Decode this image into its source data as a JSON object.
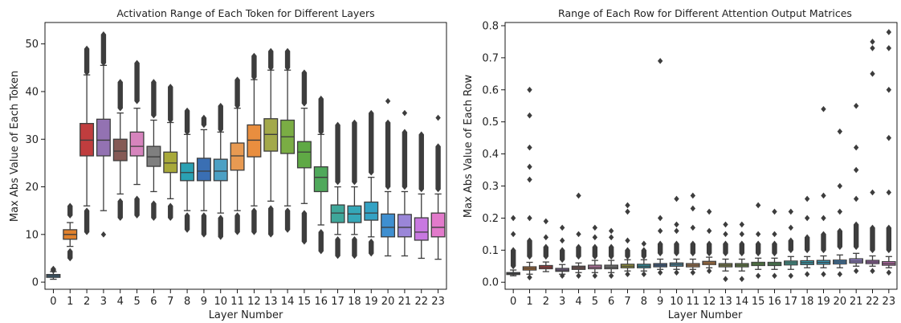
{
  "chart_data": [
    {
      "type": "box",
      "title": "Activation Range of Each Token for Different Layers",
      "xlabel": "Layer Number",
      "ylabel": "Max Abs Value of Each Token",
      "ylim": [
        -1.5,
        54.5
      ],
      "yticks": [
        0,
        10,
        20,
        30,
        40,
        50
      ],
      "categories": [
        "0",
        "1",
        "2",
        "3",
        "4",
        "5",
        "6",
        "7",
        "8",
        "9",
        "10",
        "11",
        "12",
        "13",
        "14",
        "15",
        "16",
        "17",
        "18",
        "19",
        "20",
        "21",
        "22",
        "23"
      ],
      "colors": [
        "#3274a1",
        "#e1812c",
        "#c03d3e",
        "#9372b2",
        "#855a55",
        "#d684bd",
        "#7f7f7f",
        "#a8a93a",
        "#2aa1b3",
        "#3a6fb3",
        "#4ca0c4",
        "#e89a52",
        "#e98e3f",
        "#a3a94a",
        "#7aad44",
        "#5fa945",
        "#4fa95b",
        "#3fa79a",
        "#35a7b8",
        "#34a2c4",
        "#3f8fd0",
        "#9a86d8",
        "#c878e0",
        "#e27acb"
      ],
      "boxes": [
        {
          "whislo": 0.6,
          "q1": 1.0,
          "med": 1.3,
          "q3": 1.6,
          "whishi": 2.2,
          "fliers_lo": [],
          "fliers_hi": [
            2.4,
            2.8
          ]
        },
        {
          "whislo": 7.5,
          "q1": 9.0,
          "med": 10.0,
          "q3": 11.0,
          "whishi": 12.5,
          "fliers_lo": [
            5.0,
            6.5
          ],
          "fliers_hi": [
            14.0,
            16.0
          ]
        },
        {
          "whislo": 16.0,
          "q1": 26.5,
          "med": 29.8,
          "q3": 33.3,
          "whishi": 43.5,
          "fliers_lo": [
            10.5,
            15.0
          ],
          "fliers_hi": [
            44.0,
            49.0
          ]
        },
        {
          "whislo": 15.0,
          "q1": 26.5,
          "med": 29.8,
          "q3": 34.2,
          "whishi": 45.5,
          "fliers_lo": [
            10.0
          ],
          "fliers_hi": [
            46.0,
            52.0
          ]
        },
        {
          "whislo": 18.5,
          "q1": 25.5,
          "med": 27.5,
          "q3": 30.0,
          "whishi": 35.5,
          "fliers_lo": [
            13.5,
            17.0
          ],
          "fliers_hi": [
            36.5,
            42.0
          ]
        },
        {
          "whislo": 20.5,
          "q1": 26.5,
          "med": 28.5,
          "q3": 31.5,
          "whishi": 36.5,
          "fliers_lo": [
            14.0,
            17.5
          ],
          "fliers_hi": [
            38.0,
            46.0
          ]
        },
        {
          "whislo": 19.0,
          "q1": 24.3,
          "med": 26.3,
          "q3": 28.5,
          "whishi": 34.0,
          "fliers_lo": [
            13.5,
            16.5
          ],
          "fliers_hi": [
            35.0,
            42.0
          ]
        },
        {
          "whislo": 17.5,
          "q1": 23.0,
          "med": 25.0,
          "q3": 27.3,
          "whishi": 33.5,
          "fliers_lo": [
            13.5,
            16.0
          ],
          "fliers_hi": [
            34.0,
            41.0
          ]
        },
        {
          "whislo": 15.0,
          "q1": 21.3,
          "med": 23.0,
          "q3": 25.0,
          "whishi": 31.0,
          "fliers_lo": [
            11.0,
            14.0
          ],
          "fliers_hi": [
            31.5,
            36.0
          ]
        },
        {
          "whislo": 15.0,
          "q1": 21.3,
          "med": 23.3,
          "q3": 26.0,
          "whishi": 32.0,
          "fliers_lo": [
            10.0,
            14.0
          ],
          "fliers_hi": [
            33.0,
            34.5
          ]
        },
        {
          "whislo": 14.5,
          "q1": 21.3,
          "med": 23.3,
          "q3": 25.8,
          "whishi": 31.5,
          "fliers_lo": [
            9.5,
            13.5
          ],
          "fliers_hi": [
            32.0,
            37.0
          ]
        },
        {
          "whislo": 15.0,
          "q1": 23.5,
          "med": 26.5,
          "q3": 29.2,
          "whishi": 36.5,
          "fliers_lo": [
            10.5,
            14.0
          ],
          "fliers_hi": [
            37.0,
            42.5
          ]
        },
        {
          "whislo": 16.0,
          "q1": 26.3,
          "med": 29.8,
          "q3": 33.0,
          "whishi": 42.5,
          "fliers_lo": [
            10.5,
            15.0
          ],
          "fliers_hi": [
            43.0,
            47.5
          ]
        },
        {
          "whislo": 17.0,
          "q1": 27.5,
          "med": 31.0,
          "q3": 34.3,
          "whishi": 44.5,
          "fliers_lo": [
            10.0,
            15.5
          ],
          "fliers_hi": [
            45.0,
            48.5
          ]
        },
        {
          "whislo": 16.0,
          "q1": 27.0,
          "med": 30.5,
          "q3": 34.0,
          "whishi": 44.5,
          "fliers_lo": [
            11.0,
            15.0
          ],
          "fliers_hi": [
            45.0,
            48.5
          ]
        },
        {
          "whislo": 16.5,
          "q1": 24.0,
          "med": 27.3,
          "q3": 29.5,
          "whishi": 36.5,
          "fliers_lo": [
            8.5,
            14.5
          ],
          "fliers_hi": [
            37.5,
            44.0
          ]
        },
        {
          "whislo": 12.0,
          "q1": 19.0,
          "med": 22.0,
          "q3": 24.2,
          "whishi": 31.0,
          "fliers_lo": [
            6.5,
            10.5
          ],
          "fliers_hi": [
            31.5,
            38.5
          ]
        },
        {
          "whislo": 10.0,
          "q1": 12.5,
          "med": 14.5,
          "q3": 16.2,
          "whishi": 20.0,
          "fliers_lo": [
            5.5,
            9.0
          ],
          "fliers_hi": [
            21.0,
            33.0
          ]
        },
        {
          "whislo": 10.0,
          "q1": 12.5,
          "med": 14.3,
          "q3": 16.0,
          "whishi": 20.0,
          "fliers_lo": [
            5.5,
            9.0
          ],
          "fliers_hi": [
            21.0,
            33.5
          ]
        },
        {
          "whislo": 9.5,
          "q1": 13.0,
          "med": 14.5,
          "q3": 16.8,
          "whishi": 22.0,
          "fliers_lo": [
            6.0,
            8.5
          ],
          "fliers_hi": [
            23.0,
            35.5
          ]
        },
        {
          "whislo": 5.5,
          "q1": 9.5,
          "med": 11.5,
          "q3": 14.3,
          "whishi": 19.0,
          "fliers_lo": [],
          "fliers_hi": [
            20.0,
            33.5,
            38.0
          ]
        },
        {
          "whislo": 5.5,
          "q1": 9.5,
          "med": 11.5,
          "q3": 14.2,
          "whishi": 19.0,
          "fliers_lo": [],
          "fliers_hi": [
            20.0,
            31.5,
            35.5
          ]
        },
        {
          "whislo": 5.0,
          "q1": 8.8,
          "med": 10.5,
          "q3": 13.5,
          "whishi": 18.5,
          "fliers_lo": [],
          "fliers_hi": [
            19.5,
            31.0
          ]
        },
        {
          "whislo": 4.8,
          "q1": 9.5,
          "med": 11.5,
          "q3": 14.5,
          "whishi": 18.5,
          "fliers_lo": [],
          "fliers_hi": [
            19.5,
            28.5,
            34.5
          ]
        }
      ]
    },
    {
      "type": "box",
      "title": "Range of Each Row for Different Attention Output Matrices",
      "xlabel": "Layer Number",
      "ylabel": "Max Abs Value of Each Row",
      "ylim": [
        -0.022,
        0.81
      ],
      "yticks": [
        0.0,
        0.1,
        0.2,
        0.3,
        0.4,
        0.5,
        0.6,
        0.7,
        0.8
      ],
      "categories": [
        "0",
        "1",
        "2",
        "3",
        "4",
        "5",
        "6",
        "7",
        "8",
        "9",
        "10",
        "11",
        "12",
        "13",
        "14",
        "15",
        "16",
        "17",
        "18",
        "19",
        "20",
        "21",
        "22",
        "23"
      ],
      "colors": [
        "#3274a1",
        "#e1812c",
        "#c03d3e",
        "#9372b2",
        "#855a55",
        "#d684bd",
        "#7f7f7f",
        "#a8a93a",
        "#2aa1b3",
        "#3a6fb3",
        "#4ca0c4",
        "#e89a52",
        "#e98e3f",
        "#a3a94a",
        "#7aad44",
        "#5fa945",
        "#4fa95b",
        "#3fa79a",
        "#35a7b8",
        "#34a2c4",
        "#3f8fd0",
        "#9a86d8",
        "#c878e0",
        "#e27acb"
      ],
      "boxes": [
        {
          "whislo": 0.02,
          "q1": 0.024,
          "med": 0.027,
          "q3": 0.03,
          "whishi": 0.038,
          "fliers_lo": [],
          "fliers_hi": [
            0.05,
            0.1,
            0.15,
            0.2
          ]
        },
        {
          "whislo": 0.025,
          "q1": 0.038,
          "med": 0.043,
          "q3": 0.048,
          "whishi": 0.062,
          "fliers_lo": [
            0.015
          ],
          "fliers_hi": [
            0.08,
            0.13,
            0.2,
            0.32,
            0.36,
            0.42,
            0.52,
            0.6
          ]
        },
        {
          "whislo": 0.033,
          "q1": 0.042,
          "med": 0.047,
          "q3": 0.052,
          "whishi": 0.063,
          "fliers_lo": [],
          "fliers_hi": [
            0.08,
            0.11,
            0.14,
            0.19
          ]
        },
        {
          "whislo": 0.025,
          "q1": 0.034,
          "med": 0.038,
          "q3": 0.043,
          "whishi": 0.055,
          "fliers_lo": [
            0.02
          ],
          "fliers_hi": [
            0.07,
            0.1,
            0.13,
            0.17
          ]
        },
        {
          "whislo": 0.03,
          "q1": 0.04,
          "med": 0.045,
          "q3": 0.05,
          "whishi": 0.06,
          "fliers_lo": [
            0.02
          ],
          "fliers_hi": [
            0.08,
            0.11,
            0.15,
            0.27
          ]
        },
        {
          "whislo": 0.03,
          "q1": 0.042,
          "med": 0.047,
          "q3": 0.053,
          "whishi": 0.068,
          "fliers_lo": [
            0.02
          ],
          "fliers_hi": [
            0.08,
            0.11,
            0.14,
            0.17
          ]
        },
        {
          "whislo": 0.03,
          "q1": 0.042,
          "med": 0.047,
          "q3": 0.053,
          "whishi": 0.068,
          "fliers_lo": [
            0.02
          ],
          "fliers_hi": [
            0.08,
            0.11,
            0.14,
            0.16
          ]
        },
        {
          "whislo": 0.035,
          "q1": 0.045,
          "med": 0.05,
          "q3": 0.056,
          "whishi": 0.07,
          "fliers_lo": [
            0.025
          ],
          "fliers_hi": [
            0.08,
            0.1,
            0.13,
            0.22,
            0.24
          ]
        },
        {
          "whislo": 0.035,
          "q1": 0.045,
          "med": 0.05,
          "q3": 0.056,
          "whishi": 0.07,
          "fliers_lo": [
            0.025
          ],
          "fliers_hi": [
            0.08,
            0.1,
            0.12
          ]
        },
        {
          "whislo": 0.04,
          "q1": 0.048,
          "med": 0.053,
          "q3": 0.058,
          "whishi": 0.072,
          "fliers_lo": [
            0.03
          ],
          "fliers_hi": [
            0.09,
            0.12,
            0.16,
            0.2,
            0.69
          ]
        },
        {
          "whislo": 0.04,
          "q1": 0.05,
          "med": 0.055,
          "q3": 0.06,
          "whishi": 0.072,
          "fliers_lo": [
            0.03
          ],
          "fliers_hi": [
            0.09,
            0.12,
            0.16,
            0.18,
            0.26
          ]
        },
        {
          "whislo": 0.04,
          "q1": 0.048,
          "med": 0.053,
          "q3": 0.058,
          "whishi": 0.072,
          "fliers_lo": [
            0.03
          ],
          "fliers_hi": [
            0.09,
            0.12,
            0.17,
            0.23,
            0.27
          ]
        },
        {
          "whislo": 0.045,
          "q1": 0.055,
          "med": 0.06,
          "q3": 0.065,
          "whishi": 0.078,
          "fliers_lo": [
            0.035
          ],
          "fliers_hi": [
            0.09,
            0.12,
            0.16,
            0.22
          ]
        },
        {
          "whislo": 0.035,
          "q1": 0.048,
          "med": 0.053,
          "q3": 0.058,
          "whishi": 0.072,
          "fliers_lo": [
            0.01
          ],
          "fliers_hi": [
            0.09,
            0.12,
            0.15,
            0.18
          ]
        },
        {
          "whislo": 0.035,
          "q1": 0.048,
          "med": 0.053,
          "q3": 0.058,
          "whishi": 0.072,
          "fliers_lo": [
            0.01
          ],
          "fliers_hi": [
            0.09,
            0.12,
            0.15,
            0.18
          ]
        },
        {
          "whislo": 0.04,
          "q1": 0.052,
          "med": 0.057,
          "q3": 0.062,
          "whishi": 0.075,
          "fliers_lo": [
            0.02
          ],
          "fliers_hi": [
            0.09,
            0.12,
            0.15,
            0.24
          ]
        },
        {
          "whislo": 0.04,
          "q1": 0.052,
          "med": 0.057,
          "q3": 0.062,
          "whishi": 0.075,
          "fliers_lo": [
            0.02
          ],
          "fliers_hi": [
            0.09,
            0.12,
            0.15,
            0.22
          ]
        },
        {
          "whislo": 0.04,
          "q1": 0.054,
          "med": 0.06,
          "q3": 0.066,
          "whishi": 0.08,
          "fliers_lo": [
            0.02
          ],
          "fliers_hi": [
            0.1,
            0.13,
            0.17,
            0.22
          ]
        },
        {
          "whislo": 0.045,
          "q1": 0.055,
          "med": 0.061,
          "q3": 0.067,
          "whishi": 0.08,
          "fliers_lo": [
            0.025
          ],
          "fliers_hi": [
            0.1,
            0.14,
            0.2,
            0.26
          ]
        },
        {
          "whislo": 0.045,
          "q1": 0.056,
          "med": 0.062,
          "q3": 0.068,
          "whishi": 0.082,
          "fliers_lo": [
            0.025
          ],
          "fliers_hi": [
            0.1,
            0.15,
            0.2,
            0.27,
            0.54
          ]
        },
        {
          "whislo": 0.045,
          "q1": 0.057,
          "med": 0.063,
          "q3": 0.069,
          "whishi": 0.085,
          "fliers_lo": [
            0.025
          ],
          "fliers_hi": [
            0.11,
            0.16,
            0.22,
            0.3,
            0.47
          ]
        },
        {
          "whislo": 0.05,
          "q1": 0.06,
          "med": 0.066,
          "q3": 0.073,
          "whishi": 0.09,
          "fliers_lo": [
            0.035
          ],
          "fliers_hi": [
            0.11,
            0.18,
            0.26,
            0.35,
            0.42,
            0.55
          ]
        },
        {
          "whislo": 0.05,
          "q1": 0.058,
          "med": 0.063,
          "q3": 0.068,
          "whishi": 0.082,
          "fliers_lo": [
            0.035
          ],
          "fliers_hi": [
            0.1,
            0.17,
            0.28,
            0.65,
            0.73,
            0.75
          ]
        },
        {
          "whislo": 0.045,
          "q1": 0.053,
          "med": 0.058,
          "q3": 0.064,
          "whishi": 0.08,
          "fliers_lo": [
            0.03
          ],
          "fliers_hi": [
            0.1,
            0.17,
            0.28,
            0.45,
            0.6,
            0.73,
            0.78
          ]
        }
      ]
    }
  ]
}
